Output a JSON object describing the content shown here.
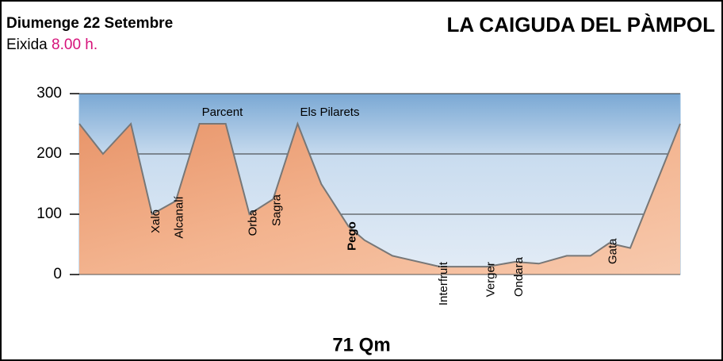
{
  "chart_data": {
    "type": "area",
    "date": "Diumenge 22 Setembre",
    "start_label": "Eixida",
    "start_time": "8.00 h.",
    "title": "LA CAIGUDA DEL PÀMPOL",
    "footer": "71 Qm",
    "x": [
      0,
      2.8,
      6.1,
      8.6,
      11.4,
      14.2,
      17.3,
      20.1,
      22.9,
      25.8,
      28.6,
      31.8,
      33.7,
      37,
      42.6,
      48.2,
      51.5,
      54.3,
      57.6,
      60.4,
      62.6,
      65.1,
      71
    ],
    "values": [
      250,
      200,
      250,
      100,
      122,
      250,
      250,
      100,
      125,
      250,
      150,
      80,
      57,
      31,
      13,
      13,
      21,
      18,
      31,
      31,
      52,
      44,
      250
    ],
    "labels": [
      null,
      null,
      null,
      "Xaló",
      "Alcanalí",
      "Parcent",
      null,
      "Orba",
      "Sagra",
      "Els Pilarets",
      null,
      "Pego",
      null,
      null,
      "Interfruit",
      "Verger",
      "Ondara",
      null,
      null,
      null,
      "Gata",
      null,
      null
    ],
    "xlim": [
      0,
      71
    ],
    "ylim": [
      0,
      300
    ],
    "yticks": [
      0,
      100,
      200,
      300
    ],
    "grid": true,
    "color": "#f2ab80",
    "sky_color": "#8fb8de"
  }
}
